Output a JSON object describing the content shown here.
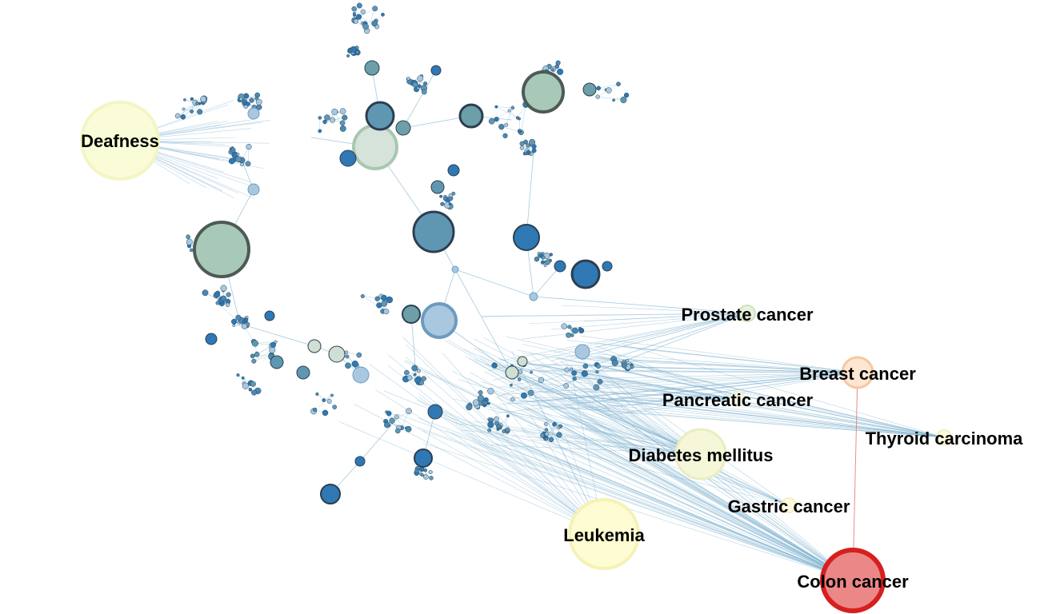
{
  "diagram": {
    "type": "network-graph",
    "disease_nodes": [
      {
        "id": "deafness",
        "label": "Deafness",
        "fill": "#fafcd8",
        "stroke": "#f3f5c4"
      },
      {
        "id": "prostate",
        "label": "Prostate cancer",
        "fill": "#e7f1dc",
        "stroke": "#cfe1bf"
      },
      {
        "id": "breast",
        "label": "Breast cancer",
        "fill": "#fde6d2",
        "stroke": "#f6c8a0"
      },
      {
        "id": "pancreatic",
        "label": "Pancreatic cancer",
        "fill": "#f6f8e6",
        "stroke": "#eef0d4"
      },
      {
        "id": "thyroid",
        "label": "Thyroid carcinoma",
        "fill": "#fdfbe0",
        "stroke": "#f5f0c0"
      },
      {
        "id": "diabetes",
        "label": "Diabetes mellitus",
        "fill": "#f5f7d8",
        "stroke": "#e9edc2"
      },
      {
        "id": "gastric",
        "label": "Gastric cancer",
        "fill": "#fdfadf",
        "stroke": "#f4efc2"
      },
      {
        "id": "leukemia",
        "label": "Leukemia",
        "fill": "#fdfcd2",
        "stroke": "#f5f2b6"
      },
      {
        "id": "colon",
        "label": "Colon cancer",
        "fill": "#ec8787",
        "stroke": "#d61f1f"
      }
    ],
    "colors": {
      "edge": "#7fb3cf",
      "edge_highlight": "#e07070",
      "node_dark": "#2f78b4",
      "node_mid": "#5f97b3",
      "node_light": "#a9c8df",
      "node_green": "#a8c8b8",
      "node_stroke": "#2c3e50"
    }
  }
}
